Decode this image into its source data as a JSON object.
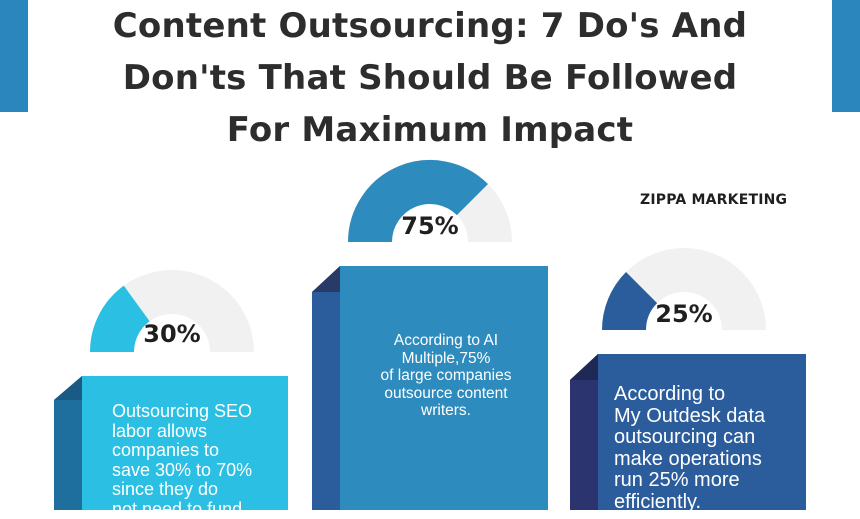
{
  "title_lines": [
    "Content Outsourcing: 7 Do's And",
    "Don'ts That Should Be Followed",
    "For Maximum Impact"
  ],
  "brand": "ZIPPA MARKETING",
  "stats": [
    {
      "percent_label": "30%",
      "value": 30,
      "text_lines": [
        "Outsourcing SEO",
        "labor allows",
        "companies to",
        "save 30% to 70%",
        "since they do",
        "not need to fund"
      ]
    },
    {
      "percent_label": "75%",
      "value": 75,
      "text_lines": [
        "According to AI",
        "Multiple,75%",
        "of large  companies",
        "outsource content",
        "writers."
      ]
    },
    {
      "percent_label": "25%",
      "value": 25,
      "text_lines": [
        "According to",
        "My Outdesk data",
        "outsourcing can",
        "make operations",
        "run 25% more",
        "efficiently."
      ]
    }
  ],
  "colors": {
    "accent": "#2b86bd",
    "cyan": "#2abfe3",
    "blue": "#2d8bbd",
    "navy": "#2b5d9c",
    "track": "#f1f1f1"
  }
}
